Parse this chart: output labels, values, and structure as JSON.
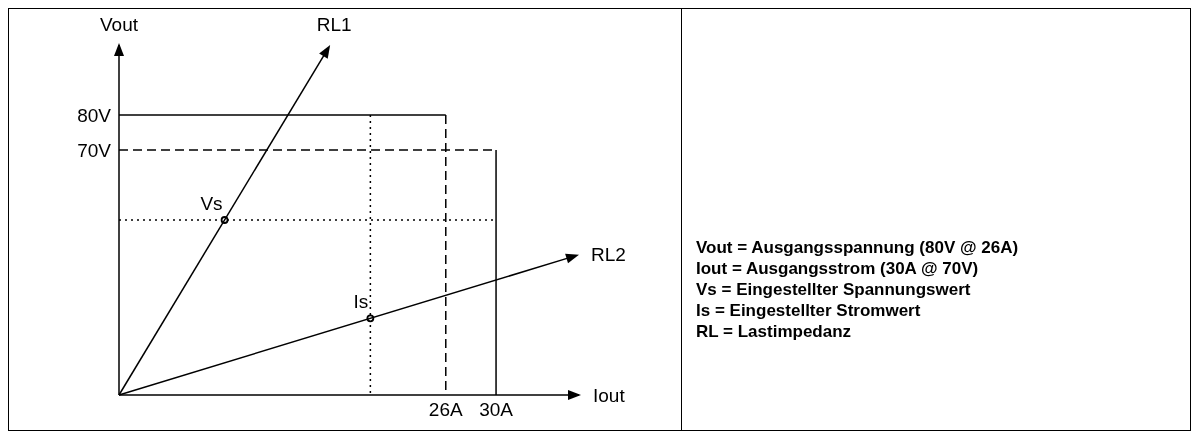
{
  "chart_data": {
    "type": "line",
    "xlabel": "Iout",
    "ylabel": "Vout",
    "xlim": [
      0,
      36.6
    ],
    "ylim": [
      0,
      100
    ],
    "xticks": [
      {
        "value": 26,
        "label": "26A"
      },
      {
        "value": 30,
        "label": "30A"
      }
    ],
    "yticks": [
      {
        "value": 70,
        "label": "70V"
      },
      {
        "value": 80,
        "label": "80V"
      }
    ],
    "marker": "none",
    "series": [
      {
        "color": "#000000",
        "line_style": "solid",
        "x": [
          0,
          26
        ],
        "values": [
          80,
          80
        ]
      },
      {
        "color": "#000000",
        "line_style": "dashed",
        "x": [
          26,
          26
        ],
        "values": [
          80,
          0
        ]
      },
      {
        "color": "#000000",
        "line_style": "dashed",
        "x": [
          0,
          30
        ],
        "values": [
          70,
          70
        ]
      },
      {
        "color": "#000000",
        "line_style": "solid",
        "x": [
          30,
          30
        ],
        "values": [
          70,
          0
        ]
      },
      {
        "color": "#000000",
        "line_style": "dotted",
        "x": [
          0,
          30
        ],
        "values": [
          50,
          50
        ]
      },
      {
        "color": "#000000",
        "line_style": "dotted",
        "x": [
          20,
          20
        ],
        "values": [
          80,
          0
        ]
      },
      {
        "name": "Vs",
        "type": "scatter",
        "marker": "circle",
        "color": "#000000",
        "x": [
          8.4
        ],
        "values": [
          50
        ]
      },
      {
        "name": "Is",
        "type": "scatter",
        "marker": "circle",
        "color": "#000000",
        "x": [
          20
        ],
        "values": [
          21.9
        ]
      }
    ],
    "annotations": [
      "RL1",
      "RL2",
      "Vout = Ausgangsspannung (80V @ 26A)",
      "Iout = Ausgangsstrom (30A @ 70V)",
      "Vs = Eingestellter Spannungswert",
      "Is = Eingestellter Stromwert",
      "RL = Lastimpedanz"
    ]
  }
}
